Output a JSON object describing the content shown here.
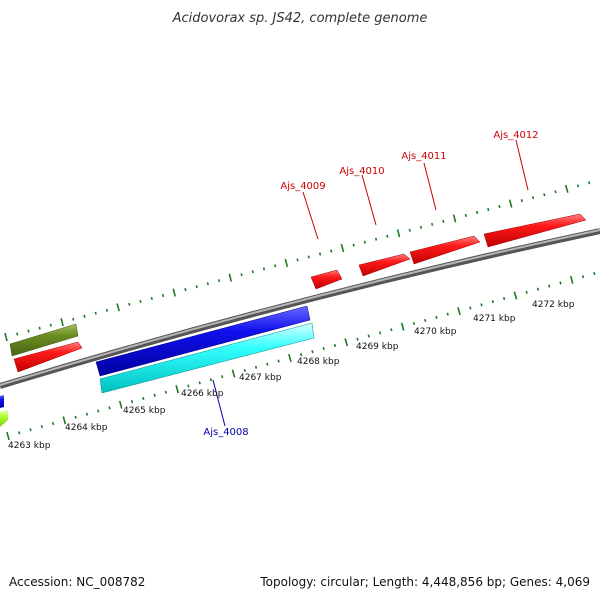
{
  "title": "Acidovorax sp. JS42, complete genome",
  "footer": {
    "accession": "Accession: NC_008782",
    "summary": "Topology: circular; Length: 4,448,856 bp; Genes: 4,069"
  },
  "colors": {
    "backbone": "#8a8a8a",
    "ticks": "#1f7a1f",
    "red": "#ff0000",
    "blue": "#0000dd",
    "cyan": "#00ffff",
    "olive": "#6b8e23",
    "lime": "#adff2f",
    "labelRed": "#cc0000",
    "labelBlue": "#0000aa"
  },
  "scale": {
    "unit": "kbp",
    "tick_labels": [
      "4263 kbp",
      "4264 kbp",
      "4265 kbp",
      "4266 kbp",
      "4267 kbp",
      "4268 kbp",
      "4269 kbp",
      "4270 kbp",
      "4271 kbp",
      "4272 kbp"
    ]
  },
  "genes": [
    {
      "id": "Ajs_4009",
      "labelled": true,
      "color": "red"
    },
    {
      "id": "Ajs_4010",
      "labelled": true,
      "color": "red"
    },
    {
      "id": "Ajs_4011",
      "labelled": true,
      "color": "red"
    },
    {
      "id": "Ajs_4012",
      "labelled": true,
      "color": "red"
    },
    {
      "id": "Ajs_4008",
      "labelled": true,
      "color": "cyan"
    }
  ]
}
